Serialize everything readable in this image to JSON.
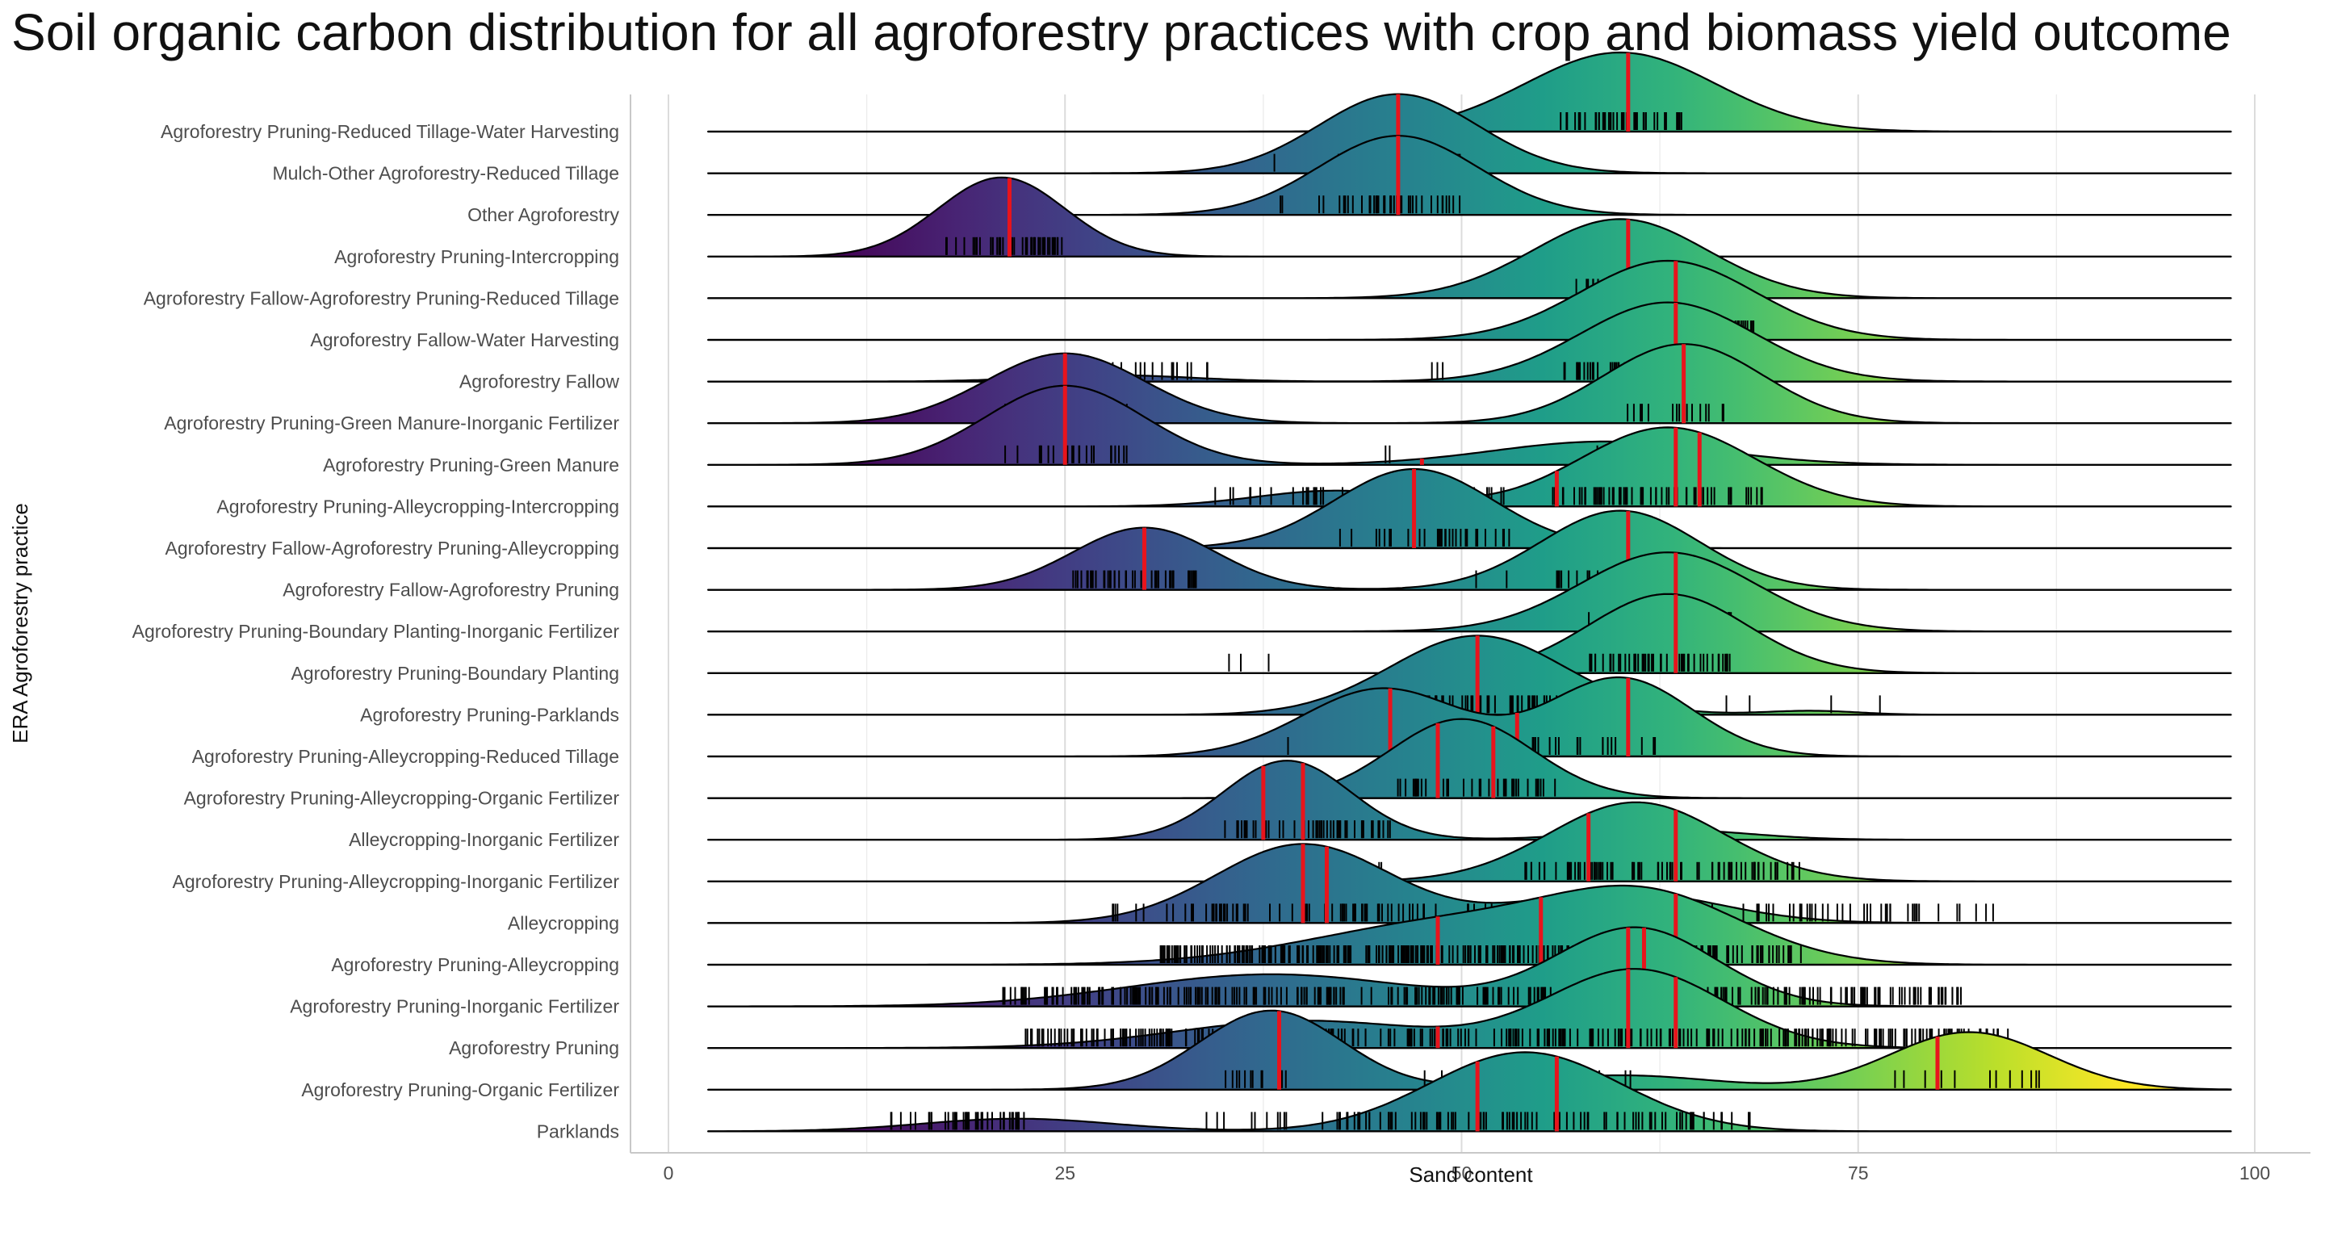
{
  "chart_data": {
    "type": "ridgeline",
    "title": "Soil organic carbon distribution for all agroforestry practices with crop and biomass yield outcome",
    "xlabel": "Sand content",
    "ylabel": "ERA Agroforestry practice",
    "xlim": [
      0,
      100
    ],
    "x_ticks": [
      0,
      25,
      50,
      75,
      100
    ],
    "line_range": [
      2.5,
      98.5
    ],
    "grid": true,
    "colormap": "viridis",
    "median_color": "#e8141c",
    "rows": [
      {
        "name": "Agroforestry Pruning-Reduced Tillage-Water Harvesting",
        "peaks": [
          {
            "mu": 60,
            "sd": 6,
            "w": 1
          }
        ],
        "medians": [
          60.5
        ],
        "ticks": [
          [
            56,
            64,
            40
          ]
        ]
      },
      {
        "name": "Mulch-Other Agroforestry-Reduced Tillage",
        "peaks": [
          {
            "mu": 46,
            "sd": 5,
            "w": 1
          }
        ],
        "medians": [
          46
        ],
        "ticks": [
          [
            38,
            38.3,
            1
          ],
          [
            42,
            50,
            30
          ]
        ]
      },
      {
        "name": "Other Agroforestry",
        "peaks": [
          {
            "mu": 46,
            "sd": 5,
            "w": 1
          }
        ],
        "medians": [
          46
        ],
        "ticks": [
          [
            38,
            39,
            2
          ],
          [
            41,
            50,
            40
          ]
        ]
      },
      {
        "name": "Agroforestry Pruning-Intercropping",
        "peaks": [
          {
            "mu": 21,
            "sd": 4,
            "w": 1
          }
        ],
        "medians": [
          21.5
        ],
        "ticks": [
          [
            17.5,
            25,
            40
          ]
        ]
      },
      {
        "name": "Agroforestry Fallow-Agroforestry Pruning-Reduced Tillage",
        "peaks": [
          {
            "mu": 60,
            "sd": 5.5,
            "w": 1
          }
        ],
        "medians": [
          60.5
        ],
        "ticks": [
          [
            57,
            62,
            12
          ]
        ]
      },
      {
        "name": "Agroforestry Fallow-Water Harvesting",
        "peaks": [
          {
            "mu": 63,
            "sd": 5.5,
            "w": 1
          }
        ],
        "medians": [
          63.5
        ],
        "ticks": [
          [
            59,
            68.5,
            45
          ]
        ]
      },
      {
        "name": "Agroforestry Fallow",
        "peaks": [
          {
            "mu": 28,
            "sd": 5,
            "w": 0.08
          },
          {
            "mu": 63,
            "sd": 5.5,
            "w": 1
          }
        ],
        "medians": [
          63.5
        ],
        "ticks": [
          [
            25.5,
            34,
            20
          ],
          [
            46,
            49,
            3
          ],
          [
            56,
            67,
            60
          ]
        ]
      },
      {
        "name": "Agroforestry Pruning-Green Manure-Inorganic Fertilizer",
        "peaks": [
          {
            "mu": 25,
            "sd": 5,
            "w": 0.75
          },
          {
            "mu": 64,
            "sd": 5,
            "w": 0.85
          }
        ],
        "medians": [
          25,
          64
        ],
        "ticks": [
          [
            21,
            29,
            22
          ],
          [
            60,
            67,
            15
          ]
        ]
      },
      {
        "name": "Agroforestry Pruning-Green Manure",
        "peaks": [
          {
            "mu": 25,
            "sd": 5,
            "w": 0.95
          },
          {
            "mu": 59,
            "sd": 7,
            "w": 0.28
          }
        ],
        "medians": [
          25,
          47.5
        ],
        "ticks": [
          [
            21,
            29,
            22
          ],
          [
            44,
            46,
            2
          ],
          [
            57,
            61,
            3
          ]
        ]
      },
      {
        "name": "Agroforestry Pruning-Alleycropping-Intercropping",
        "peaks": [
          {
            "mu": 42,
            "sd": 5,
            "w": 0.2
          },
          {
            "mu": 63,
            "sd": 5.5,
            "w": 1
          }
        ],
        "medians": [
          56,
          63.5,
          65
        ],
        "ticks": [
          [
            33.5,
            45,
            20
          ],
          [
            48,
            53,
            8
          ],
          [
            55,
            69,
            60
          ]
        ]
      },
      {
        "name": "Agroforestry Fallow-Agroforestry Pruning-Alleycropping",
        "peaks": [
          {
            "mu": 47,
            "sd": 5,
            "w": 1
          }
        ],
        "medians": [
          47
        ],
        "ticks": [
          [
            42,
            53,
            35
          ],
          [
            58,
            62,
            5
          ]
        ]
      },
      {
        "name": "Agroforestry Fallow-Agroforestry Pruning",
        "peaks": [
          {
            "mu": 30,
            "sd": 4.5,
            "w": 0.55
          },
          {
            "mu": 60,
            "sd": 5,
            "w": 0.7
          }
        ],
        "medians": [
          30,
          60.5
        ],
        "ticks": [
          [
            25.5,
            33.5,
            40
          ],
          [
            50,
            53,
            2
          ],
          [
            56,
            64,
            35
          ]
        ]
      },
      {
        "name": "Agroforestry Pruning-Boundary Planting-Inorganic Fertilizer",
        "peaks": [
          {
            "mu": 63,
            "sd": 5.5,
            "w": 1
          }
        ],
        "medians": [
          63.5
        ],
        "ticks": [
          [
            58,
            58.3,
            1
          ],
          [
            60,
            67,
            40
          ]
        ]
      },
      {
        "name": "Agroforestry Pruning-Boundary Planting",
        "peaks": [
          {
            "mu": 63,
            "sd": 5,
            "w": 1
          }
        ],
        "medians": [
          63.5
        ],
        "ticks": [
          [
            35,
            38,
            3
          ],
          [
            57.5,
            67,
            45
          ]
        ]
      },
      {
        "name": "Agroforestry Pruning-Parklands",
        "peaks": [
          {
            "mu": 51,
            "sd": 5.5,
            "w": 1
          },
          {
            "mu": 72,
            "sd": 3,
            "w": 0.05
          }
        ],
        "medians": [
          51
        ],
        "ticks": [
          [
            47,
            56,
            45
          ],
          [
            66,
            77,
            4
          ]
        ]
      },
      {
        "name": "Agroforestry Pruning-Alleycropping-Reduced Tillage",
        "peaks": [
          {
            "mu": 45,
            "sd": 5,
            "w": 0.65
          },
          {
            "mu": 60,
            "sd": 4.5,
            "w": 0.75
          }
        ],
        "medians": [
          45.5,
          53.5,
          60.5
        ],
        "ticks": [
          [
            39,
            39.3,
            1
          ],
          [
            44.5,
            63,
            25
          ]
        ]
      },
      {
        "name": "Agroforestry Pruning-Alleycropping-Organic Fertilizer",
        "peaks": [
          {
            "mu": 50,
            "sd": 4.5,
            "w": 1
          }
        ],
        "medians": [
          48.5,
          52
        ],
        "ticks": [
          [
            45,
            56,
            35
          ]
        ]
      },
      {
        "name": "Alleycropping-Inorganic Fertilizer",
        "peaks": [
          {
            "mu": 39,
            "sd": 4,
            "w": 0.95
          },
          {
            "mu": 63,
            "sd": 5,
            "w": 0.12
          }
        ],
        "medians": [
          37.5,
          40
        ],
        "ticks": [
          [
            34,
            45.5,
            45
          ],
          [
            60.5,
            65.5,
            10
          ]
        ]
      },
      {
        "name": "Agroforestry Pruning-Alleycropping-Inorganic Fertilizer",
        "peaks": [
          {
            "mu": 61,
            "sd": 5.5,
            "w": 1
          }
        ],
        "medians": [
          58,
          63.5
        ],
        "ticks": [
          [
            38,
            45,
            15
          ],
          [
            54,
            71.5,
            80
          ]
        ]
      },
      {
        "name": "Alleycropping",
        "peaks": [
          {
            "mu": 40,
            "sd": 5.5,
            "w": 0.75
          },
          {
            "mu": 60,
            "sd": 6,
            "w": 0.3
          }
        ],
        "medians": [
          40,
          41.5
        ],
        "ticks": [
          [
            28,
            84,
            150
          ]
        ]
      },
      {
        "name": "Agroforestry Pruning-Alleycropping",
        "peaks": [
          {
            "mu": 50,
            "sd": 9,
            "w": 0.25
          },
          {
            "mu": 62,
            "sd": 6,
            "w": 0.33
          }
        ],
        "medians": [
          48.5,
          55,
          63.5
        ],
        "ticks": [
          [
            31,
            71.5,
            300
          ]
        ]
      },
      {
        "name": "Agroforestry Pruning-Inorganic Fertilizer",
        "peaks": [
          {
            "mu": 38,
            "sd": 9,
            "w": 0.35
          },
          {
            "mu": 61,
            "sd": 5,
            "w": 0.85
          }
        ],
        "medians": [
          60.5,
          61.5
        ],
        "ticks": [
          [
            21,
            81.5,
            300
          ]
        ]
      },
      {
        "name": "Agroforestry Pruning",
        "peaks": [
          {
            "mu": 40,
            "sd": 8,
            "w": 0.35
          },
          {
            "mu": 61,
            "sd": 5.5,
            "w": 1
          }
        ],
        "medians": [
          48.5,
          60.5,
          63.5
        ],
        "ticks": [
          [
            22.5,
            84.5,
            320
          ]
        ]
      },
      {
        "name": "Agroforestry Pruning-Organic Fertilizer",
        "peaks": [
          {
            "mu": 38,
            "sd": 4.5,
            "w": 0.55
          },
          {
            "mu": 82,
            "sd": 5,
            "w": 0.4
          },
          {
            "mu": 60,
            "sd": 6,
            "w": 0.1
          }
        ],
        "medians": [
          38.5,
          80
        ],
        "ticks": [
          [
            35,
            40,
            12
          ],
          [
            47,
            63,
            10
          ],
          [
            77,
            87,
            12
          ]
        ]
      },
      {
        "name": "Parklands",
        "peaks": [
          {
            "mu": 22,
            "sd": 6,
            "w": 0.12
          },
          {
            "mu": 54,
            "sd": 6,
            "w": 0.75
          }
        ],
        "medians": [
          51,
          56
        ],
        "ticks": [
          [
            14,
            23,
            40
          ],
          [
            33.5,
            39,
            10
          ],
          [
            40.5,
            68.5,
            90
          ]
        ]
      }
    ]
  }
}
